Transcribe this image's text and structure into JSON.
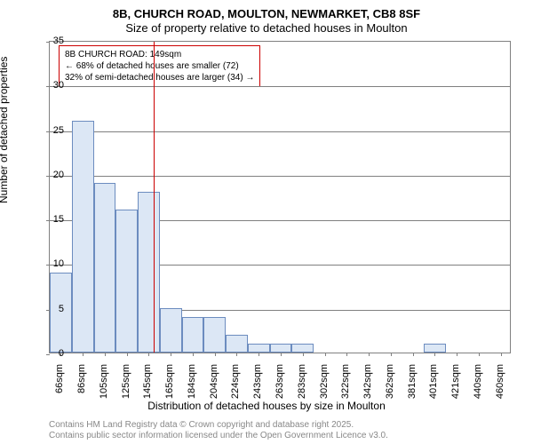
{
  "title_main": "8B, CHURCH ROAD, MOULTON, NEWMARKET, CB8 8SF",
  "title_sub": "Size of property relative to detached houses in Moulton",
  "chart": {
    "type": "histogram",
    "y_axis_title": "Number of detached properties",
    "x_axis_title": "Distribution of detached houses by size in Moulton",
    "ylim": [
      0,
      35
    ],
    "ytick_step": 5,
    "background_color": "#ffffff",
    "bar_fill": "#dce7f5",
    "bar_border": "#6c8cbf",
    "axis_color": "#808080",
    "marker_color": "#cc0000",
    "categories": [
      "66sqm",
      "86sqm",
      "105sqm",
      "125sqm",
      "145sqm",
      "165sqm",
      "184sqm",
      "204sqm",
      "224sqm",
      "243sqm",
      "263sqm",
      "283sqm",
      "302sqm",
      "322sqm",
      "342sqm",
      "362sqm",
      "381sqm",
      "401sqm",
      "421sqm",
      "440sqm",
      "460sqm"
    ],
    "values": [
      9,
      26,
      19,
      16,
      18,
      5,
      4,
      4,
      2,
      1,
      1,
      1,
      0,
      0,
      0,
      0,
      0,
      1,
      0,
      0,
      0
    ],
    "marker_position": 149,
    "x_range": [
      56,
      470
    ],
    "annotation": {
      "line1": "8B CHURCH ROAD: 149sqm",
      "line2": "← 68% of detached houses are smaller (72)",
      "line3": "32% of semi-detached houses are larger (34) →"
    }
  },
  "license": {
    "line1": "Contains HM Land Registry data © Crown copyright and database right 2025.",
    "line2": "Contains public sector information licensed under the Open Government Licence v3.0."
  }
}
